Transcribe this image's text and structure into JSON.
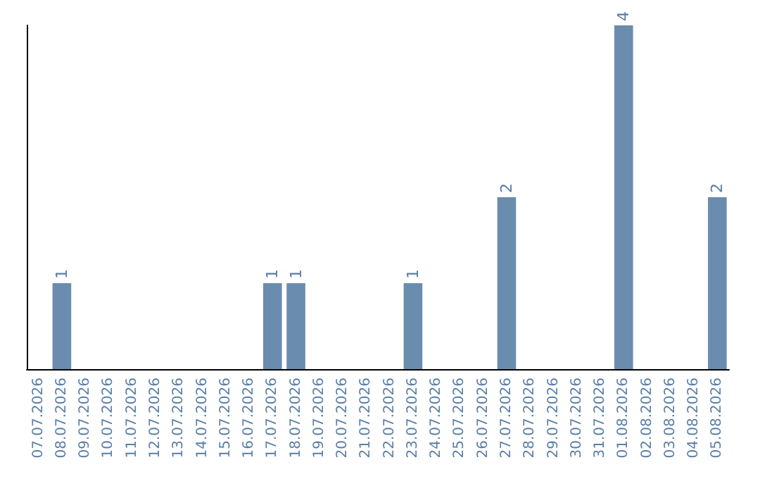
{
  "chart_data": {
    "type": "bar",
    "categories": [
      "07.07.2026",
      "08.07.2026",
      "09.07.2026",
      "10.07.2026",
      "11.07.2026",
      "12.07.2026",
      "13.07.2026",
      "14.07.2026",
      "15.07.2026",
      "16.07.2026",
      "17.07.2026",
      "18.07.2026",
      "19.07.2026",
      "20.07.2026",
      "21.07.2026",
      "22.07.2026",
      "23.07.2026",
      "24.07.2026",
      "25.07.2026",
      "26.07.2026",
      "27.07.2026",
      "28.07.2026",
      "29.07.2026",
      "30.07.2026",
      "31.07.2026",
      "01.08.2026",
      "02.08.2026",
      "03.08.2026",
      "04.08.2026",
      "05.08.2026"
    ],
    "values": [
      0,
      1,
      0,
      0,
      0,
      0,
      0,
      0,
      0,
      0,
      1,
      1,
      0,
      0,
      0,
      0,
      1,
      0,
      0,
      0,
      2,
      0,
      0,
      0,
      0,
      4,
      0,
      0,
      0,
      2
    ],
    "value_labels": [
      null,
      "1",
      null,
      null,
      null,
      null,
      null,
      null,
      null,
      null,
      "1",
      "1",
      null,
      null,
      null,
      null,
      "1",
      null,
      null,
      null,
      "2",
      null,
      null,
      null,
      null,
      "4",
      null,
      null,
      null,
      "2"
    ],
    "color": "#6a8caf",
    "tick_labels": "x",
    "grid": false
  }
}
